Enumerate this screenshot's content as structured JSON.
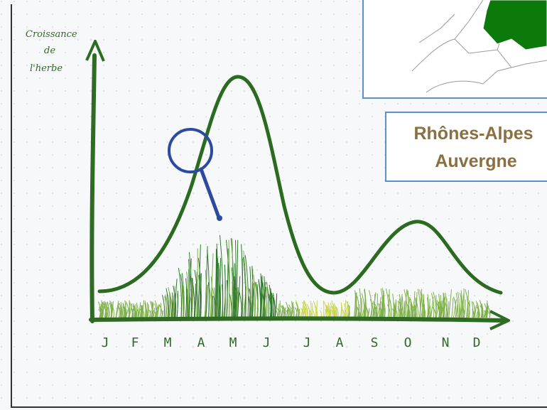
{
  "y_axis_label": [
    "Croissance",
    "de",
    "l'herbe"
  ],
  "months": [
    "J",
    "F",
    "M",
    "A",
    "M",
    "J",
    "J",
    "A",
    "S",
    "O",
    "N",
    "D"
  ],
  "region": [
    "Rhônes-Alpes",
    "Auvergne"
  ]
}
